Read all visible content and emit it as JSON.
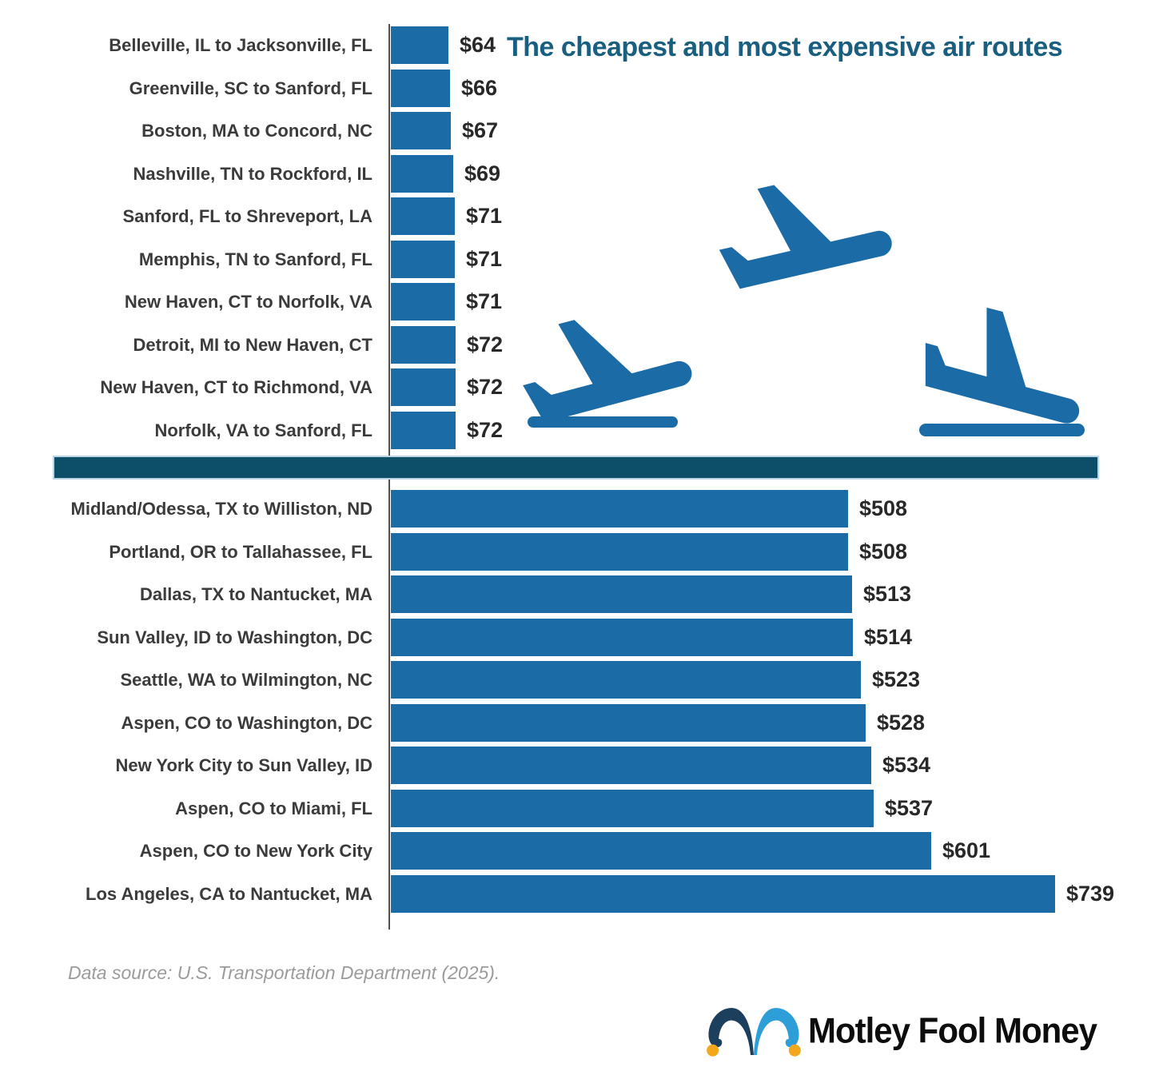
{
  "title": "The cheapest and most expensive air routes",
  "colors": {
    "bar": "#1b6ba6",
    "divider": "#0d4e68",
    "title": "#1a5f80",
    "hat_dark": "#1d3f5e",
    "hat_light": "#2e9ed9",
    "hat_ball": "#f2a71d",
    "label_text": "#3b3b3b",
    "value_text": "#282828"
  },
  "icons": {
    "cruise": "airplane-cruise-icon",
    "takeoff": "airplane-takeoff-icon",
    "landing": "airplane-landing-icon"
  },
  "footer": {
    "source": "Data source: U.S. Transportation Department (2025)."
  },
  "logo": {
    "text": "Motley Fool Money"
  },
  "chart_data": [
    {
      "type": "bar",
      "orientation": "horizontal",
      "group": "cheapest",
      "unit": "USD",
      "categories": [
        "Belleville, IL to Jacksonville, FL",
        "Greenville, SC to Sanford, FL",
        "Boston, MA to Concord, NC",
        "Nashville, TN to Rockford, IL",
        "Sanford, FL to Shreveport, LA",
        "Memphis, TN to Sanford, FL",
        "New Haven, CT to Norfolk, VA",
        "Detroit, MI to New Haven, CT",
        "New Haven, CT to Richmond, VA",
        "Norfolk, VA to Sanford, FL"
      ],
      "values": [
        64,
        66,
        67,
        69,
        71,
        71,
        71,
        72,
        72,
        72
      ],
      "value_labels": [
        "$64",
        "$66",
        "$67",
        "$69",
        "$71",
        "$71",
        "$71",
        "$72",
        "$72",
        "$72"
      ]
    },
    {
      "type": "bar",
      "orientation": "horizontal",
      "group": "most_expensive",
      "unit": "USD",
      "categories": [
        "Midland/Odessa, TX to Williston, ND",
        "Portland, OR to Tallahassee, FL",
        "Dallas, TX to Nantucket, MA",
        "Sun Valley, ID to Washington, DC",
        "Seattle, WA to Wilmington, NC",
        "Aspen, CO to Washington, DC",
        "New York City to Sun Valley, ID",
        "Aspen, CO to Miami, FL",
        "Aspen, CO to New York City",
        "Los Angeles, CA to Nantucket, MA"
      ],
      "values": [
        508,
        508,
        513,
        514,
        523,
        528,
        534,
        537,
        601,
        739
      ],
      "value_labels": [
        "$508",
        "$508",
        "$513",
        "$514",
        "$523",
        "$528",
        "$534",
        "$537",
        "$601",
        "$739"
      ]
    }
  ]
}
